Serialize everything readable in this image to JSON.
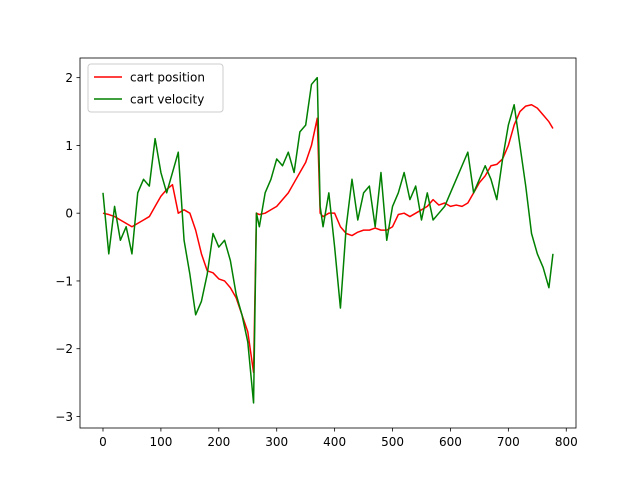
{
  "chart_data": {
    "type": "line",
    "x": [
      0,
      10,
      20,
      30,
      40,
      50,
      60,
      70,
      80,
      90,
      100,
      110,
      120,
      130,
      140,
      150,
      160,
      170,
      180,
      190,
      200,
      210,
      220,
      230,
      240,
      250,
      260,
      265,
      270,
      280,
      290,
      300,
      310,
      320,
      330,
      340,
      350,
      360,
      370,
      375,
      380,
      390,
      400,
      410,
      420,
      430,
      440,
      450,
      460,
      470,
      480,
      490,
      500,
      510,
      520,
      530,
      540,
      550,
      560,
      570,
      580,
      590,
      600,
      610,
      620,
      630,
      640,
      650,
      660,
      670,
      680,
      690,
      700,
      710,
      720,
      730,
      740,
      750,
      760,
      770,
      777
    ],
    "series": [
      {
        "name": "cart position",
        "color": "#ff0000",
        "values": [
          0,
          -0.02,
          -0.05,
          -0.1,
          -0.15,
          -0.2,
          -0.15,
          -0.1,
          -0.05,
          0.1,
          0.25,
          0.35,
          0.42,
          0,
          0.05,
          0,
          -0.25,
          -0.6,
          -0.85,
          -0.88,
          -0.97,
          -1.0,
          -1.1,
          -1.25,
          -1.5,
          -1.75,
          -2.35,
          0,
          -0.02,
          0,
          0.05,
          0.1,
          0.2,
          0.3,
          0.45,
          0.6,
          0.75,
          1.0,
          1.4,
          0,
          -0.05,
          0,
          0,
          -0.2,
          -0.3,
          -0.33,
          -0.28,
          -0.25,
          -0.25,
          -0.22,
          -0.25,
          -0.25,
          -0.2,
          -0.02,
          0,
          -0.05,
          0,
          0.05,
          0.1,
          0.2,
          0.12,
          0.15,
          0.1,
          0.12,
          0.1,
          0.15,
          0.3,
          0.45,
          0.55,
          0.7,
          0.72,
          0.8,
          1.0,
          1.3,
          1.5,
          1.58,
          1.6,
          1.55,
          1.45,
          1.35,
          1.25
        ]
      },
      {
        "name": "cart velocity",
        "color": "#008000",
        "values": [
          0.3,
          -0.6,
          0.1,
          -0.4,
          -0.2,
          -0.6,
          0.3,
          0.5,
          0.4,
          1.1,
          0.6,
          0.3,
          0.6,
          0.9,
          -0.4,
          -0.9,
          -1.5,
          -1.3,
          -0.9,
          -0.3,
          -0.5,
          -0.4,
          -0.7,
          -1.2,
          -1.5,
          -1.9,
          -2.8,
          0,
          -0.2,
          0.3,
          0.5,
          0.8,
          0.7,
          0.9,
          0.6,
          1.2,
          1.3,
          1.9,
          2.0,
          0.1,
          -0.2,
          0.3,
          -0.5,
          -1.4,
          -0.2,
          0.5,
          -0.1,
          0.3,
          0.4,
          -0.2,
          0.6,
          -0.4,
          0.1,
          0.3,
          0.6,
          0.2,
          0.4,
          -0.1,
          0.3,
          -0.1,
          0.0,
          0.1,
          0.3,
          0.5,
          0.7,
          0.9,
          0.3,
          0.5,
          0.7,
          0.5,
          0.2,
          0.8,
          1.3,
          1.6,
          1.0,
          0.4,
          -0.3,
          -0.6,
          -0.8,
          -1.1,
          -0.6
        ]
      }
    ],
    "xlim": [
      -39.7,
      816.8
    ],
    "ylim": [
      -3.17,
      2.29
    ],
    "xticks": [
      0,
      100,
      200,
      300,
      400,
      500,
      600,
      700,
      800
    ],
    "yticks": [
      {
        "value": -3,
        "label": "−3"
      },
      {
        "value": -2,
        "label": "−2"
      },
      {
        "value": -1,
        "label": "−1"
      },
      0,
      1,
      2
    ],
    "legend": "upper left"
  }
}
